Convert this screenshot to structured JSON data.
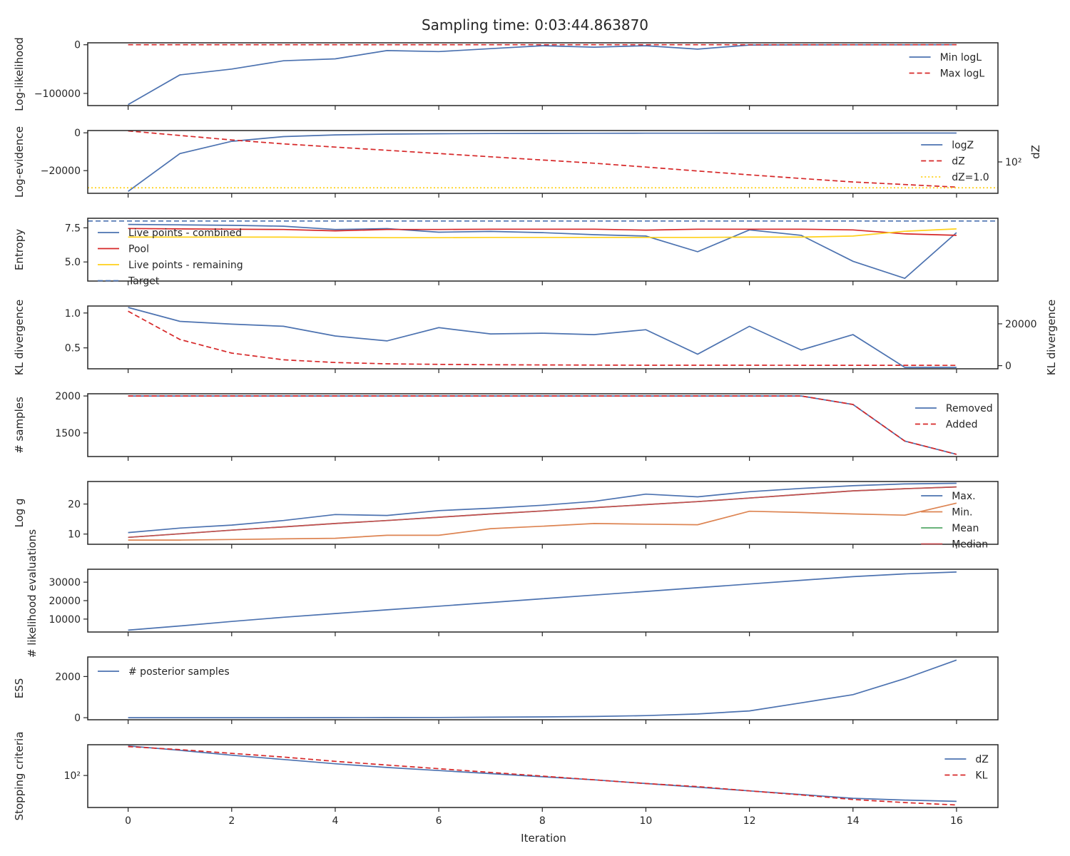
{
  "title": "Sampling time: 0:03:44.863870",
  "xlabel": "Iteration",
  "x_ticks": [
    0,
    2,
    4,
    6,
    8,
    10,
    12,
    14,
    16
  ],
  "colors": {
    "blue": "#4c72b0",
    "red": "#d62728",
    "orange": "#dd8452",
    "green": "#55a868",
    "gold": "#ffd11a",
    "median": "#c44e52"
  },
  "chart_data": [
    {
      "type": "line",
      "ylabel": "Log-likelihood",
      "ylim": [
        -125000,
        4000
      ],
      "yticks": [
        {
          "v": 0,
          "label": "0"
        },
        {
          "v": -100000,
          "label": "−100000"
        }
      ],
      "legend_loc": "upper-right",
      "x": [
        0,
        1,
        2,
        3,
        4,
        5,
        6,
        7,
        8,
        9,
        10,
        11,
        12,
        13,
        14,
        15,
        16
      ],
      "series": [
        {
          "name": "Min logL",
          "color": "blue",
          "dash": "solid",
          "values": [
            -123000,
            -62000,
            -50000,
            -33000,
            -29000,
            -12000,
            -14000,
            -8000,
            -2000,
            -5000,
            -2000,
            -9000,
            -500,
            -200,
            -100,
            -50,
            -20
          ]
        },
        {
          "name": "Max logL",
          "color": "red",
          "dash": "dashed",
          "values": [
            0,
            0,
            0,
            0,
            0,
            0,
            0,
            0,
            0,
            0,
            0,
            0,
            0,
            0,
            0,
            0,
            0
          ]
        }
      ]
    },
    {
      "type": "line",
      "ylabel": "Log-evidence",
      "ylim": [
        -32000,
        1200
      ],
      "yticks": [
        {
          "v": 0,
          "label": "0"
        },
        {
          "v": -20000,
          "label": "−20000"
        }
      ],
      "y2label": "dZ",
      "y2_scale": "log",
      "y2lim_log10": [
        -0.43,
        4.43
      ],
      "y2ticks": [
        {
          "v": 2,
          "label": "10²"
        }
      ],
      "legend_loc": "right",
      "x": [
        0,
        1,
        2,
        3,
        4,
        5,
        6,
        7,
        8,
        9,
        10,
        11,
        12,
        13,
        14,
        15,
        16
      ],
      "series": [
        {
          "name": "logZ",
          "color": "blue",
          "dash": "solid",
          "axis": "left",
          "values": [
            -31000,
            -11000,
            -4500,
            -2000,
            -1100,
            -700,
            -500,
            -400,
            -300,
            -250,
            -200,
            -180,
            -160,
            -150,
            -140,
            -130,
            -120
          ]
        },
        {
          "name": "dZ",
          "color": "red",
          "dash": "dashed",
          "axis": "right_log",
          "values": [
            4.4,
            4.05,
            3.7,
            3.4,
            3.15,
            2.9,
            2.65,
            2.4,
            2.15,
            1.9,
            1.6,
            1.3,
            1.0,
            0.72,
            0.45,
            0.25,
            0.05
          ]
        },
        {
          "name": "dZ=1.0",
          "color": "gold",
          "dash": "dotted",
          "axis": "right_log",
          "values": [
            0,
            0,
            0,
            0,
            0,
            0,
            0,
            0,
            0,
            0,
            0,
            0,
            0,
            0,
            0,
            0,
            0
          ]
        }
      ]
    },
    {
      "type": "line",
      "ylabel": "Entropy",
      "ylim": [
        3.6,
        8.2
      ],
      "yticks": [
        {
          "v": 7.5,
          "label": "7.5"
        },
        {
          "v": 5.0,
          "label": "5.0"
        }
      ],
      "legend_loc": "upper-left",
      "x": [
        0,
        1,
        2,
        3,
        4,
        5,
        6,
        7,
        8,
        9,
        10,
        11,
        12,
        13,
        14,
        15,
        16
      ],
      "series": [
        {
          "name": "Live points - combined",
          "color": "blue",
          "dash": "solid",
          "values": [
            7.75,
            7.72,
            7.68,
            7.62,
            7.38,
            7.44,
            7.18,
            7.24,
            7.15,
            7.0,
            6.9,
            5.75,
            7.35,
            6.95,
            5.05,
            3.8,
            7.15
          ]
        },
        {
          "name": "Pool",
          "color": "red",
          "dash": "solid",
          "values": [
            7.45,
            7.42,
            7.4,
            7.38,
            7.28,
            7.38,
            7.38,
            7.4,
            7.4,
            7.4,
            7.33,
            7.4,
            7.4,
            7.4,
            7.35,
            7.06,
            6.95
          ]
        },
        {
          "name": "Live points - remaining",
          "color": "gold",
          "dash": "solid",
          "values": [
            6.82,
            6.82,
            6.82,
            6.82,
            6.8,
            6.78,
            6.78,
            6.8,
            6.8,
            6.8,
            6.8,
            6.8,
            6.82,
            6.82,
            6.9,
            7.25,
            7.42
          ]
        },
        {
          "name": "Target",
          "color": "blue",
          "dash": "dashed",
          "values": [
            8.0,
            8.0,
            8.0,
            8.0,
            8.0,
            8.0,
            8.0,
            8.0,
            8.0,
            8.0,
            8.0,
            8.0,
            8.0,
            8.0,
            8.0,
            8.0,
            8.0
          ]
        }
      ]
    },
    {
      "type": "line",
      "ylabel": "KL divergence",
      "ylim": [
        0.2,
        1.1
      ],
      "yticks": [
        {
          "v": 1.0,
          "label": "1.0"
        },
        {
          "v": 0.5,
          "label": "0.5"
        }
      ],
      "y2label": "KL divergence",
      "y2lim": [
        -1500,
        28500
      ],
      "y2ticks": [
        {
          "v": 20000,
          "label": "20000"
        },
        {
          "v": 0,
          "label": "0"
        }
      ],
      "legend_loc": "none",
      "x": [
        0,
        1,
        2,
        3,
        4,
        5,
        6,
        7,
        8,
        9,
        10,
        11,
        12,
        13,
        14,
        15,
        16
      ],
      "series": [
        {
          "name": "",
          "color": "blue",
          "dash": "solid",
          "axis": "left",
          "values": [
            1.08,
            0.88,
            0.84,
            0.81,
            0.67,
            0.6,
            0.79,
            0.7,
            0.71,
            0.69,
            0.76,
            0.41,
            0.81,
            0.47,
            0.69,
            0.22,
            0.22
          ]
        },
        {
          "name": "",
          "color": "red",
          "dash": "dashed",
          "axis": "right",
          "values": [
            26000,
            12500,
            6000,
            2800,
            1500,
            900,
            600,
            450,
            350,
            280,
            220,
            200,
            190,
            180,
            170,
            160,
            150
          ]
        }
      ]
    },
    {
      "type": "line",
      "ylabel": "# samples",
      "ylim": [
        1180,
        2030
      ],
      "yticks": [
        {
          "v": 2000,
          "label": "2000"
        },
        {
          "v": 1500,
          "label": "1500"
        }
      ],
      "legend_loc": "upper-right",
      "x": [
        0,
        1,
        2,
        3,
        4,
        5,
        6,
        7,
        8,
        9,
        10,
        11,
        12,
        13,
        14,
        15,
        16
      ],
      "series": [
        {
          "name": "Removed",
          "color": "blue",
          "dash": "solid",
          "values": [
            2000,
            2000,
            2000,
            2000,
            2000,
            2000,
            2000,
            2000,
            2000,
            2000,
            2000,
            2000,
            2000,
            2000,
            1885,
            1390,
            1210
          ]
        },
        {
          "name": "Added",
          "color": "red",
          "dash": "dashed",
          "values": [
            2000,
            2000,
            2000,
            2000,
            2000,
            2000,
            2000,
            2000,
            2000,
            2000,
            2000,
            2000,
            2000,
            2000,
            1885,
            1390,
            1210
          ]
        }
      ]
    },
    {
      "type": "line",
      "ylabel": "Log g",
      "ylim": [
        6.6,
        27.5
      ],
      "yticks": [
        {
          "v": 20,
          "label": "20"
        },
        {
          "v": 10,
          "label": "10"
        }
      ],
      "legend_loc": "right",
      "x": [
        0,
        1,
        2,
        3,
        4,
        5,
        6,
        7,
        8,
        9,
        10,
        11,
        12,
        13,
        14,
        15,
        16
      ],
      "series": [
        {
          "name": "Max.",
          "color": "blue",
          "dash": "solid",
          "values": [
            10.5,
            12.0,
            13.0,
            14.5,
            16.5,
            16.2,
            17.8,
            18.6,
            19.6,
            20.9,
            23.3,
            22.4,
            24.1,
            25.2,
            26.1,
            26.7,
            26.9
          ]
        },
        {
          "name": "Min.",
          "color": "orange",
          "dash": "solid",
          "values": [
            8.0,
            8.0,
            8.2,
            8.4,
            8.6,
            9.6,
            9.6,
            11.8,
            12.6,
            13.5,
            13.3,
            13.1,
            17.6,
            17.2,
            16.7,
            16.3,
            20.3
          ]
        },
        {
          "name": "Mean",
          "color": "green",
          "dash": "solid",
          "values": [
            8.9,
            10.1,
            11.3,
            12.4,
            13.5,
            14.5,
            15.6,
            16.7,
            17.7,
            18.8,
            19.8,
            20.8,
            22.0,
            23.2,
            24.4,
            25.1,
            25.7
          ]
        },
        {
          "name": "Median",
          "color": "median",
          "dash": "solid",
          "values": [
            8.9,
            10.1,
            11.3,
            12.4,
            13.5,
            14.5,
            15.6,
            16.7,
            17.7,
            18.8,
            19.8,
            20.8,
            22.0,
            23.2,
            24.4,
            25.1,
            25.7
          ]
        }
      ]
    },
    {
      "type": "line",
      "ylabel": "# likelihood evaluations",
      "ylim": [
        3000,
        37000
      ],
      "yticks": [
        {
          "v": 30000,
          "label": "30000"
        },
        {
          "v": 20000,
          "label": "20000"
        },
        {
          "v": 10000,
          "label": "10000"
        }
      ],
      "legend_loc": "none",
      "x": [
        0,
        1,
        2,
        3,
        4,
        5,
        6,
        7,
        8,
        9,
        10,
        11,
        12,
        13,
        14,
        15,
        16
      ],
      "series": [
        {
          "name": "",
          "color": "blue",
          "dash": "solid",
          "values": [
            4000,
            6300,
            8700,
            11000,
            13000,
            15000,
            17000,
            19000,
            21000,
            23000,
            25000,
            27000,
            29000,
            31000,
            33000,
            34500,
            35500
          ]
        }
      ]
    },
    {
      "type": "line",
      "ylabel": "ESS",
      "ylim": [
        -100,
        2950
      ],
      "yticks": [
        {
          "v": 2000,
          "label": "2000"
        },
        {
          "v": 0,
          "label": "0"
        }
      ],
      "legend_loc": "upper-left",
      "x": [
        0,
        1,
        2,
        3,
        4,
        5,
        6,
        7,
        8,
        9,
        10,
        11,
        12,
        13,
        14,
        15,
        16
      ],
      "series": [
        {
          "name": "# posterior samples",
          "color": "blue",
          "dash": "solid",
          "values": [
            0,
            0,
            0,
            2,
            4,
            8,
            12,
            25,
            40,
            60,
            100,
            180,
            330,
            720,
            1120,
            1900,
            2800
          ]
        }
      ]
    },
    {
      "type": "line",
      "ylabel": "Stopping criteria",
      "y_scale": "log",
      "ylim_log10": [
        -0.6,
        4.5
      ],
      "yticks": [
        {
          "v": 2,
          "label": "10²"
        }
      ],
      "legend_loc": "upper-right",
      "x": [
        0,
        1,
        2,
        3,
        4,
        5,
        6,
        7,
        8,
        9,
        10,
        11,
        12,
        13,
        14,
        15,
        16
      ],
      "series": [
        {
          "name": "dZ",
          "color": "blue",
          "dash": "solid",
          "values": [
            4.4,
            4.05,
            3.65,
            3.3,
            2.95,
            2.65,
            2.4,
            2.15,
            1.9,
            1.65,
            1.35,
            1.05,
            0.75,
            0.45,
            0.15,
            0.0,
            -0.1
          ]
        },
        {
          "name": "KL",
          "color": "red",
          "dash": "dashed",
          "values": [
            4.35,
            4.1,
            3.8,
            3.5,
            3.15,
            2.85,
            2.55,
            2.25,
            1.95,
            1.65,
            1.35,
            1.1,
            0.75,
            0.42,
            0.05,
            -0.2,
            -0.4
          ]
        }
      ]
    }
  ]
}
